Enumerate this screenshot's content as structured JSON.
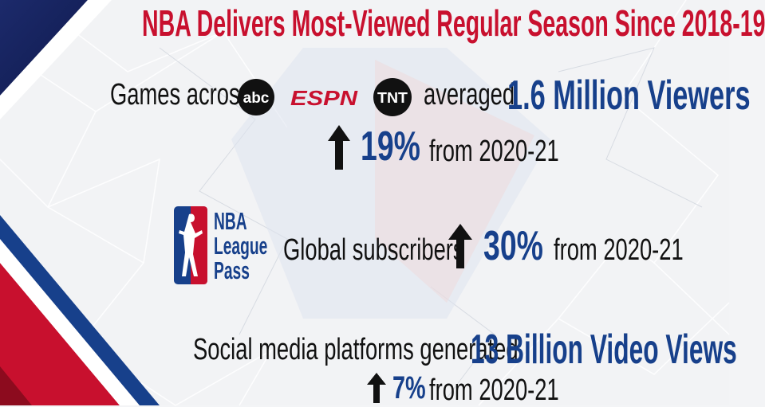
{
  "title": "NBA Delivers Most-Viewed Regular Season Since 2018-19",
  "colors": {
    "brand_red": "#c8102e",
    "brand_blue": "#17408b",
    "text": "#111111"
  },
  "section1": {
    "lead": "Games across",
    "networks": [
      "abc",
      "ESPN",
      "TNT"
    ],
    "verb": "averaged",
    "highlight": "1.6 Million Viewers",
    "change": "19%",
    "change_icon": "up-arrow-icon",
    "from": "from 2020-21"
  },
  "section2": {
    "logo_lines": [
      "NBA",
      "League",
      "Pass"
    ],
    "label": "Global subscribers",
    "change": "30%",
    "change_icon": "up-arrow-icon",
    "from": "from 2020-21"
  },
  "section3": {
    "lead": "Social media platforms generated",
    "highlight": "13 Billion Video Views",
    "change": "7%",
    "change_icon": "up-arrow-icon",
    "from": "from 2020-21"
  }
}
